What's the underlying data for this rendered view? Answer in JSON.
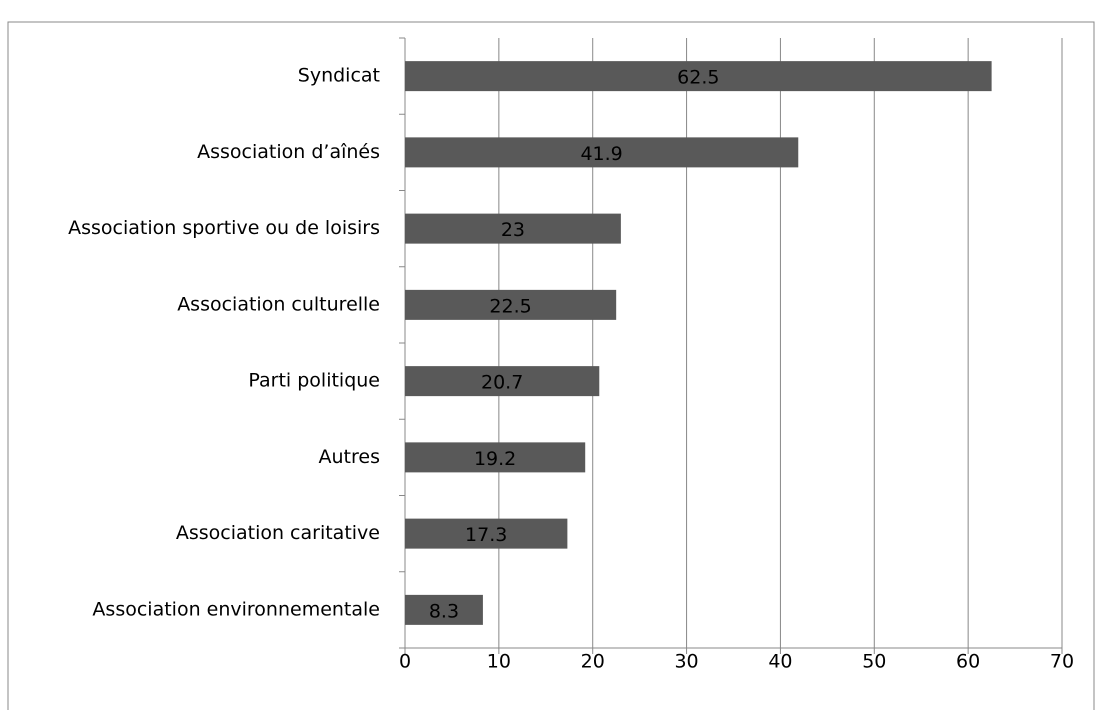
{
  "chart_data": {
    "type": "bar",
    "orientation": "horizontal",
    "categories": [
      "Syndicat",
      "Association d’aînés",
      "Association sportive ou de loisirs",
      "Association culturelle",
      "Parti politique",
      "Autres ",
      "Association caritative",
      "Association environnementale"
    ],
    "values": [
      62.5,
      41.9,
      23,
      22.5,
      20.7,
      19.2,
      17.3,
      8.3
    ],
    "color": "#595959",
    "xlim": [
      0,
      70
    ],
    "xticks": [
      0,
      10,
      20,
      30,
      40,
      50,
      60,
      70
    ],
    "grid": true
  }
}
